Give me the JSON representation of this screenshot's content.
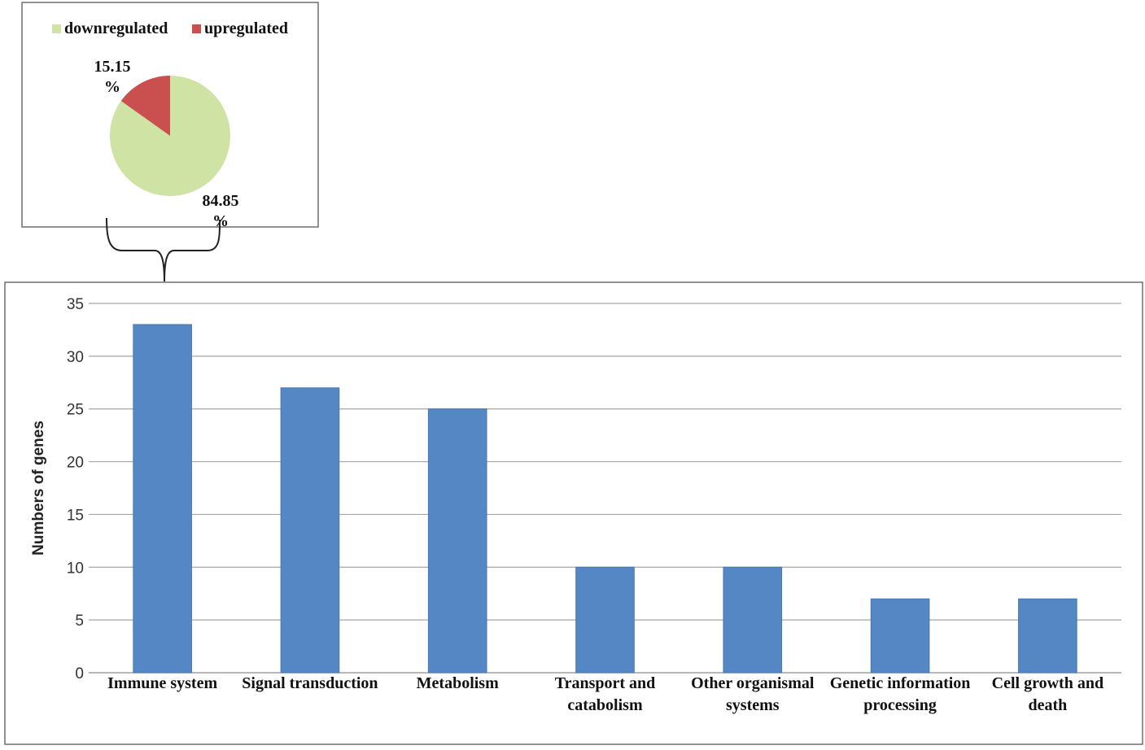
{
  "chart_data": [
    {
      "type": "pie",
      "legend": [
        {
          "label": "downregulated",
          "color": "#cfe3a5"
        },
        {
          "label": "upregulated",
          "color": "#c9504f"
        }
      ],
      "slices": [
        {
          "name": "downregulated",
          "value": 84.85,
          "color": "#cfe3a5"
        },
        {
          "name": "upregulated",
          "value": 15.15,
          "color": "#c9504f"
        }
      ],
      "labels": [
        {
          "value": "15.15",
          "unit": "%"
        },
        {
          "value": "84.85",
          "unit": "%"
        }
      ],
      "legend_position": "top"
    },
    {
      "type": "bar",
      "categories": [
        [
          "Immune system"
        ],
        [
          "Signal transduction"
        ],
        [
          "Metabolism"
        ],
        [
          "Transport and",
          "catabolism"
        ],
        [
          "Other organismal",
          "systems"
        ],
        [
          "Genetic information",
          "processing"
        ],
        [
          "Cell growth and",
          "death"
        ]
      ],
      "values": [
        33,
        27,
        25,
        10,
        10,
        7,
        7
      ],
      "ylabel": "Numbers of genes",
      "xlabel": "",
      "ylim": [
        0,
        35
      ],
      "yticks": [
        0,
        5,
        10,
        15,
        20,
        25,
        30,
        35
      ],
      "grid": true,
      "bar_color": "#5487c4"
    }
  ]
}
